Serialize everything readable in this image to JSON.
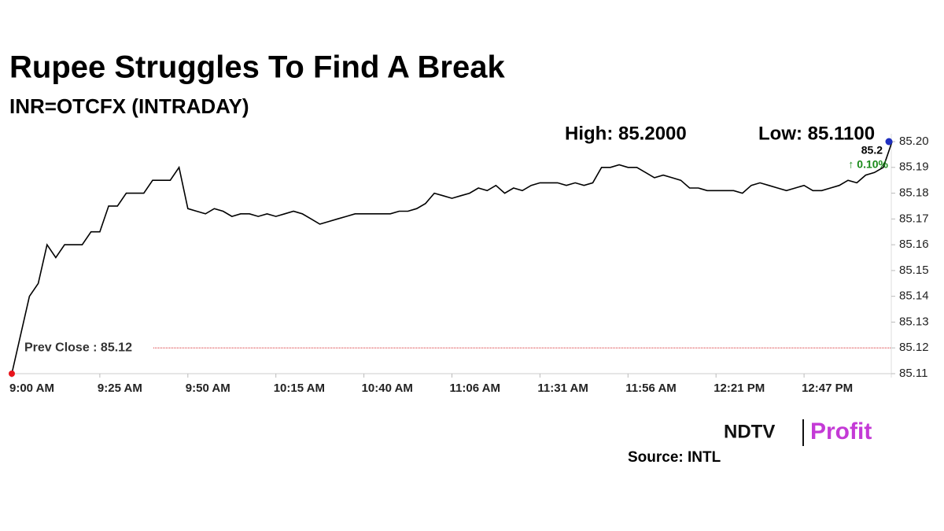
{
  "chart_data": {
    "type": "line",
    "title": "Rupee Struggles To Find A Break",
    "subtitle": "INR=OTCFX (INTRADAY)",
    "high_label": "High: 85.2000",
    "low_label": "Low: 85.1100",
    "last_label": "85.2",
    "change_label": "↑ 0.10%",
    "prev_close": {
      "value": 85.12,
      "label": "Prev Close : 85.12",
      "color": "#d62728"
    },
    "categories": [
      "9:00 AM",
      null,
      null,
      null,
      null,
      null,
      null,
      null,
      null,
      null,
      "9:25 AM",
      null,
      null,
      null,
      null,
      null,
      null,
      null,
      null,
      null,
      "9:50 AM",
      null,
      null,
      null,
      null,
      null,
      null,
      null,
      null,
      null,
      "10:15 AM",
      null,
      null,
      null,
      null,
      null,
      null,
      null,
      null,
      null,
      "10:40 AM",
      null,
      null,
      null,
      null,
      null,
      null,
      null,
      null,
      null,
      "11:06 AM",
      null,
      null,
      null,
      null,
      null,
      null,
      null,
      null,
      null,
      "11:31 AM",
      null,
      null,
      null,
      null,
      null,
      null,
      null,
      null,
      null,
      "11:56 AM",
      null,
      null,
      null,
      null,
      null,
      null,
      null,
      null,
      null,
      "12:21 PM",
      null,
      null,
      null,
      null,
      null,
      null,
      null,
      null,
      null,
      "12:47 PM",
      null,
      null,
      null,
      null,
      null,
      null,
      null,
      null,
      null,
      null
    ],
    "series": [
      {
        "name": "INR=OTCFX",
        "color": "#000000",
        "values": [
          85.11,
          85.125,
          85.14,
          85.145,
          85.16,
          85.155,
          85.16,
          85.16,
          85.16,
          85.165,
          85.165,
          85.175,
          85.175,
          85.18,
          85.18,
          85.18,
          85.185,
          85.185,
          85.185,
          85.19,
          85.174,
          85.173,
          85.172,
          85.174,
          85.173,
          85.171,
          85.172,
          85.172,
          85.171,
          85.172,
          85.171,
          85.172,
          85.173,
          85.172,
          85.17,
          85.168,
          85.169,
          85.17,
          85.171,
          85.172,
          85.172,
          85.172,
          85.172,
          85.172,
          85.173,
          85.173,
          85.174,
          85.176,
          85.18,
          85.179,
          85.178,
          85.179,
          85.18,
          85.182,
          85.181,
          85.183,
          85.18,
          85.182,
          85.181,
          85.183,
          85.184,
          85.184,
          85.184,
          85.183,
          85.184,
          85.183,
          85.184,
          85.19,
          85.19,
          85.191,
          85.19,
          85.19,
          85.188,
          85.186,
          85.187,
          85.186,
          85.185,
          85.182,
          85.182,
          85.181,
          85.181,
          85.181,
          85.181,
          85.18,
          85.183,
          85.184,
          85.183,
          85.182,
          85.181,
          85.182,
          85.183,
          85.181,
          85.181,
          85.182,
          85.183,
          85.185,
          85.184,
          85.187,
          85.188,
          85.19,
          85.2
        ]
      }
    ],
    "ylim": [
      85.11,
      85.2
    ],
    "yticks": [
      85.11,
      85.12,
      85.13,
      85.14,
      85.15,
      85.16,
      85.17,
      85.18,
      85.19,
      {
        "value": 85.2,
        "label": "85.20"
      }
    ],
    "start_color": "#e8141b",
    "end_color": "#1f2fbf",
    "change_color": "#1a8a1a"
  },
  "brand": {
    "name": "NDTV",
    "product": "Profit"
  },
  "source": "Source: INTL"
}
